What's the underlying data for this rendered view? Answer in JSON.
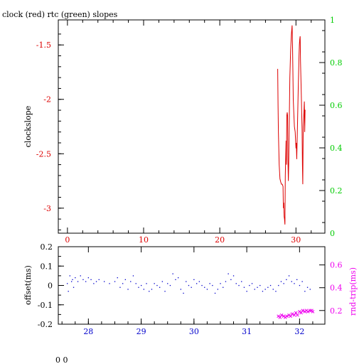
{
  "title": "clock (red) rtc (green) slopes",
  "footer": "0 0",
  "colors": {
    "red": "#dd0000",
    "green": "#00cc00",
    "blue": "#0000cc",
    "magenta": "#ee00ee",
    "black": "#000000"
  },
  "chart_data": [
    {
      "type": "line",
      "title": "clock (red) rtc (green) slopes",
      "ylabel": "clockslope",
      "xlim": [
        -1.2,
        33.8
      ],
      "ylim": [
        -3.23,
        -1.27
      ],
      "y2lim": [
        0,
        1
      ],
      "x_ticks": [
        "0",
        "10",
        "20",
        "30"
      ],
      "x_tick_values": [
        0,
        10,
        20,
        30
      ],
      "y_ticks": [
        "-1.5",
        "-2",
        "-2.5",
        "-3"
      ],
      "y_tick_values": [
        -1.5,
        -2,
        -2.5,
        -3
      ],
      "y2_ticks": [
        "0",
        "0.2",
        "0.4",
        "0.6",
        "0.8",
        "1"
      ],
      "y2_tick_values": [
        0,
        0.2,
        0.4,
        0.6,
        0.8,
        1
      ],
      "series": [
        {
          "color": "#dd0000",
          "x": [
            27.6,
            27.65,
            27.7,
            27.8,
            27.9,
            28.0,
            28.1,
            28.2,
            28.3,
            28.35,
            28.4,
            28.45,
            28.5,
            28.55,
            28.6,
            28.7,
            28.75,
            28.8,
            28.85,
            28.9,
            28.95,
            29.0,
            29.05,
            29.1,
            29.2,
            29.3,
            29.4,
            29.5,
            29.55,
            29.6,
            29.65,
            29.7,
            29.8,
            29.9,
            30.0,
            30.05,
            30.1,
            30.2,
            30.3,
            30.4,
            30.45,
            30.5,
            30.55,
            30.6,
            30.7,
            30.8,
            30.85,
            30.9,
            30.95,
            31.0,
            31.1,
            31.15,
            31.2,
            31.25
          ],
          "values": [
            -1.72,
            -2.05,
            -2.3,
            -2.6,
            -2.73,
            -2.76,
            -2.78,
            -2.78,
            -2.8,
            -3.0,
            -2.95,
            -3.08,
            -3.1,
            -3.15,
            -2.7,
            -2.38,
            -2.6,
            -2.15,
            -2.12,
            -2.15,
            -2.55,
            -2.75,
            -2.6,
            -2.35,
            -1.8,
            -1.55,
            -1.4,
            -1.32,
            -1.52,
            -1.75,
            -2.0,
            -2.1,
            -2.25,
            -2.3,
            -2.45,
            -2.4,
            -2.55,
            -2.25,
            -1.9,
            -1.6,
            -1.5,
            -1.45,
            -1.42,
            -1.65,
            -1.95,
            -2.28,
            -2.6,
            -2.78,
            -2.25,
            -2.2,
            -2.02,
            -2.3,
            -2.1,
            -2.1
          ]
        }
      ]
    },
    {
      "type": "scatter",
      "ylabel": "offset(ms)",
      "y2label": "rnd-trip(ms)",
      "xlim": [
        27.43,
        32.48
      ],
      "ylim": [
        -0.2,
        0.2
      ],
      "y2lim": [
        0.08,
        0.76
      ],
      "x_ticks": [
        "28",
        "29",
        "30",
        "31",
        "32"
      ],
      "x_tick_values": [
        28,
        29,
        30,
        31,
        32
      ],
      "y_ticks": [
        "0.2",
        "0.1",
        "0",
        "-0.1",
        "-0.2"
      ],
      "y_tick_values": [
        0.2,
        0.1,
        0,
        -0.1,
        -0.2
      ],
      "y2_ticks": [
        "0.6",
        "0.4",
        "0.2"
      ],
      "y2_tick_values": [
        0.6,
        0.4,
        0.2
      ],
      "series": [
        {
          "color": "#0000cc",
          "x": [
            27.6,
            27.62,
            27.65,
            27.68,
            27.7,
            27.72,
            27.75,
            27.8,
            27.85,
            27.9,
            27.95,
            28.0,
            28.05,
            28.1,
            28.15,
            28.2,
            28.3,
            28.4,
            28.5,
            28.55,
            28.6,
            28.65,
            28.7,
            28.75,
            28.8,
            28.85,
            28.9,
            28.95,
            29.0,
            29.05,
            29.1,
            29.15,
            29.2,
            29.25,
            29.3,
            29.35,
            29.4,
            29.45,
            29.5,
            29.55,
            29.6,
            29.65,
            29.7,
            29.75,
            29.8,
            29.85,
            29.9,
            29.95,
            30.0,
            30.05,
            30.1,
            30.15,
            30.2,
            30.25,
            30.3,
            30.35,
            30.4,
            30.45,
            30.5,
            30.55,
            30.6,
            30.65,
            30.7,
            30.75,
            30.8,
            30.85,
            30.9,
            30.95,
            31.0,
            31.05,
            31.1,
            31.15,
            31.2,
            31.25,
            31.3,
            31.35,
            31.4,
            31.45,
            31.5,
            31.55,
            31.6,
            31.65,
            31.7,
            31.75,
            31.8,
            31.85,
            31.9,
            31.95,
            32.0,
            32.05,
            32.1,
            32.15,
            32.2
          ],
          "values": [
            0.01,
            -0.03,
            0.05,
            0.02,
            0.03,
            -0.01,
            0.04,
            0.02,
            0.05,
            0.03,
            0.02,
            0.04,
            0.03,
            0.01,
            0.02,
            0.03,
            0.02,
            0.01,
            0.02,
            0.04,
            -0.01,
            0.01,
            0.03,
            -0.02,
            0.02,
            0.05,
            0.01,
            -0.01,
            0.0,
            -0.02,
            0.01,
            -0.03,
            -0.02,
            0.01,
            0.0,
            -0.01,
            0.02,
            -0.03,
            0.01,
            0.0,
            0.06,
            0.03,
            0.04,
            -0.02,
            -0.04,
            0.02,
            0.0,
            -0.01,
            0.03,
            0.01,
            0.02,
            0.0,
            -0.01,
            -0.02,
            0.01,
            0.0,
            -0.04,
            -0.02,
            0.01,
            -0.01,
            0.02,
            0.06,
            0.03,
            0.05,
            0.01,
            0.0,
            0.02,
            -0.01,
            -0.03,
            0.0,
            0.01,
            -0.02,
            -0.01,
            0.0,
            -0.03,
            -0.02,
            -0.01,
            0.0,
            -0.02,
            -0.03,
            0.0,
            0.02,
            0.01,
            0.03,
            0.05,
            0.02,
            0.01,
            0.03,
            0.0,
            0.02,
            -0.03,
            -0.01,
            -0.02
          ]
        },
        {
          "color": "#ee00ee",
          "axis": "right",
          "x": [
            31.6,
            31.63,
            31.66,
            31.7,
            31.73,
            31.76,
            31.8,
            31.83,
            31.86,
            31.9,
            31.93,
            31.96,
            32.0,
            32.03,
            32.06,
            32.1,
            32.13,
            32.16,
            32.2,
            32.23,
            32.25
          ],
          "values": [
            0.15,
            0.14,
            0.16,
            0.15,
            0.14,
            0.15,
            0.16,
            0.15,
            0.17,
            0.16,
            0.18,
            0.16,
            0.19,
            0.18,
            0.2,
            0.19,
            0.2,
            0.19,
            0.2,
            0.2,
            0.19
          ]
        }
      ]
    }
  ]
}
